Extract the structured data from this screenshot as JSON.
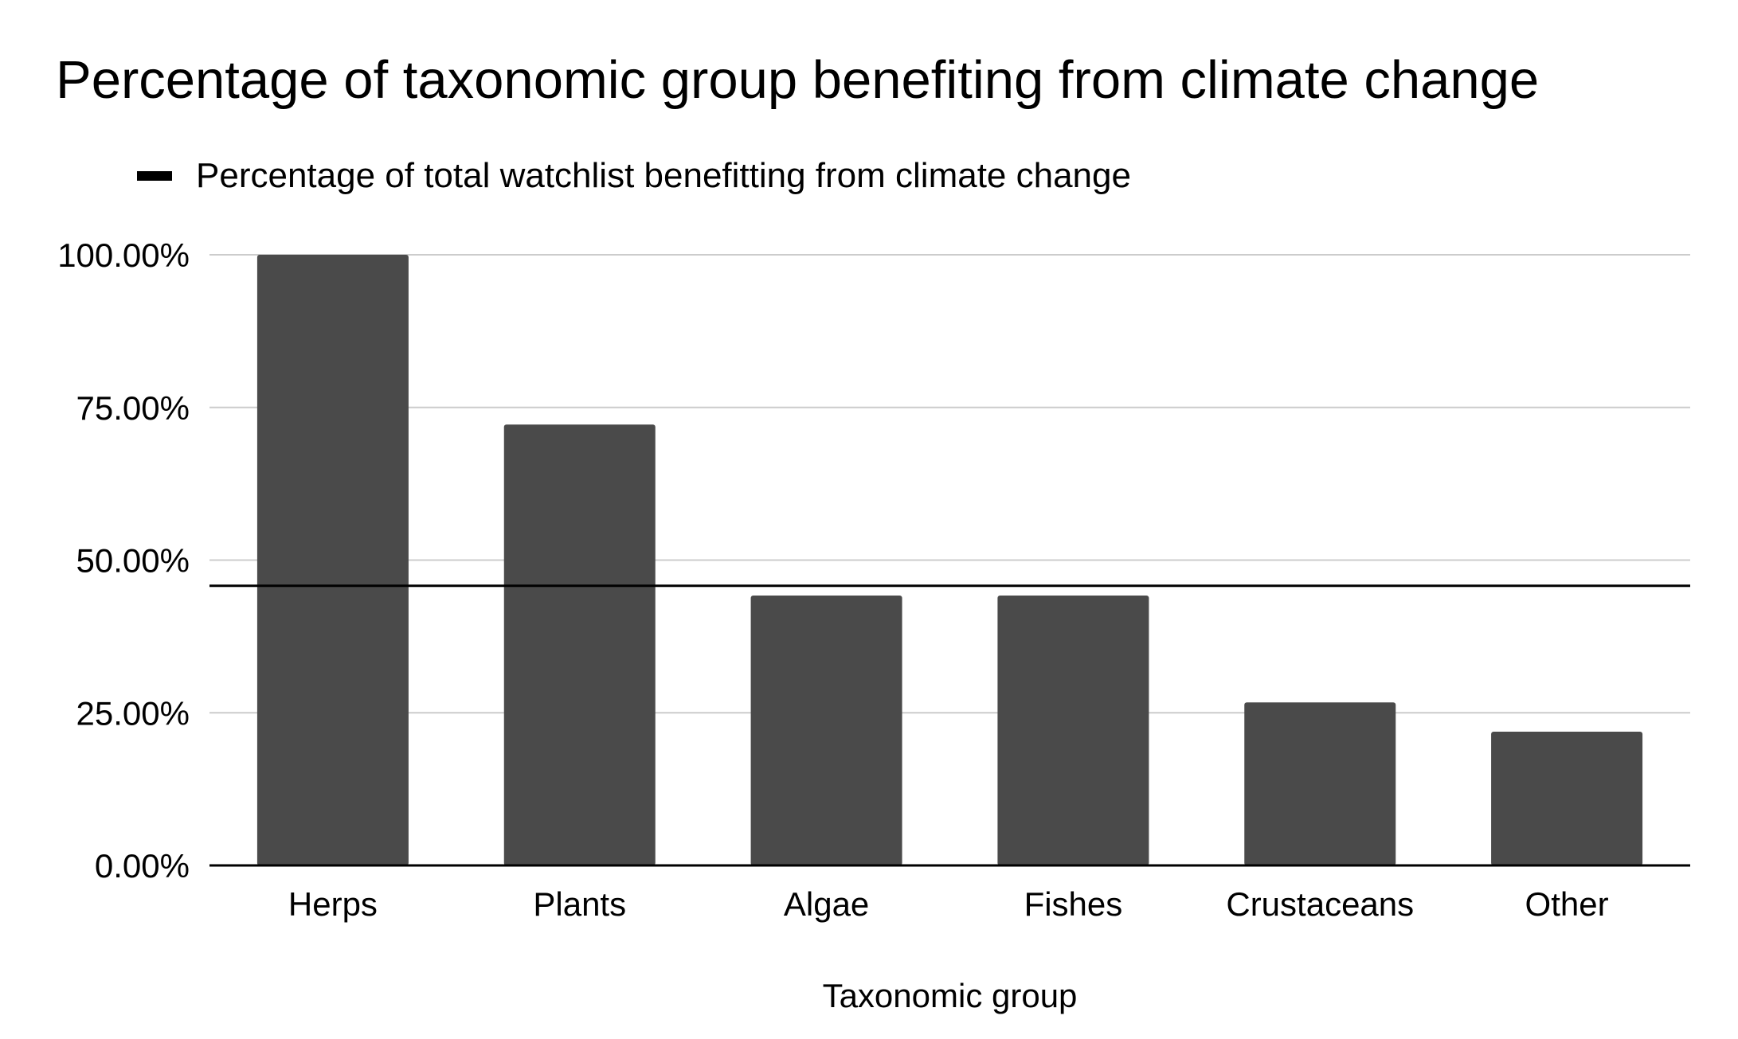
{
  "chart_data": {
    "type": "bar",
    "title": "Percentage of taxonomic group benefiting from climate change",
    "xlabel": "Taxonomic group",
    "ylabel": "",
    "categories": [
      "Herps",
      "Plants",
      "Algae",
      "Fishes",
      "Crustaceans",
      "Other"
    ],
    "series": [
      {
        "name": "Percentage of taxonomic group benefiting from climate change",
        "values": [
          100.0,
          72.2,
          44.2,
          44.2,
          26.7,
          21.9
        ]
      }
    ],
    "reference_line": {
      "name": "Percentage of total watchlist benefitting from climate change",
      "value": 45.8
    },
    "ylim": [
      0,
      100
    ],
    "yticks": [
      0,
      25,
      50,
      75,
      100
    ],
    "ytick_labels": [
      "0.00%",
      "25.00%",
      "50.00%",
      "75.00%",
      "100.00%"
    ],
    "grid": true,
    "legend": {
      "position": "top-left",
      "entries": [
        "Percentage of total watchlist benefitting from climate change"
      ]
    },
    "colors": {
      "bar": "#4a4a4a",
      "reference_line": "#000000",
      "grid": "#cccccc",
      "axis": "#000000"
    }
  }
}
